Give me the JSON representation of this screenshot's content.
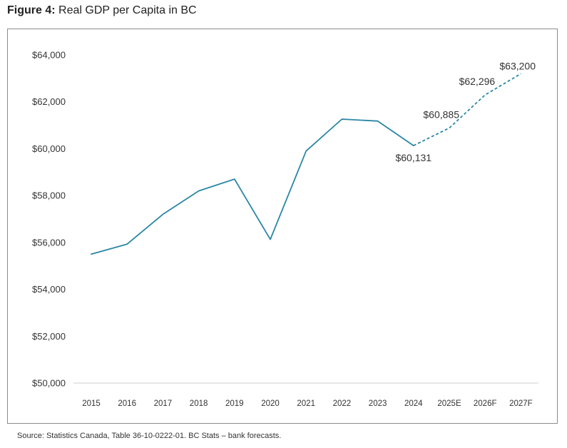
{
  "figure": {
    "label": "Figure 4:",
    "title": "Real GDP per Capita in BC"
  },
  "source": "Source: Statistics Canada, Table 36-10-0222-01. BC Stats – bank forecasts.",
  "colors": {
    "line": "#2a86a5",
    "baseline": "#cfcfcf",
    "frame": "#8c8c8c"
  },
  "chart_data": {
    "type": "line",
    "title": "Real GDP per Capita in BC",
    "xlabel": "",
    "ylabel": "",
    "ylim": [
      50000,
      64000
    ],
    "grid": false,
    "y_ticks": [
      50000,
      52000,
      54000,
      56000,
      58000,
      60000,
      62000,
      64000
    ],
    "y_tick_labels": [
      "$50,000",
      "$52,000",
      "$54,000",
      "$56,000",
      "$58,000",
      "$60,000",
      "$62,000",
      "$64,000"
    ],
    "categories": [
      "2015",
      "2016",
      "2017",
      "2018",
      "2019",
      "2020",
      "2021",
      "2022",
      "2023",
      "2024",
      "2025E",
      "2026F",
      "2027F"
    ],
    "series": [
      {
        "style": "solid",
        "values": [
          55500,
          55930,
          57200,
          58200,
          58700,
          56130,
          59900,
          61260,
          61180,
          60131,
          null,
          null,
          null
        ]
      },
      {
        "style": "dashed",
        "values": [
          null,
          null,
          null,
          null,
          null,
          null,
          null,
          null,
          null,
          60131,
          60885,
          62296,
          63200
        ]
      }
    ],
    "annotations": [
      {
        "category": "2024",
        "value": 60131,
        "text": "$60,131"
      },
      {
        "category": "2025E",
        "value": 60885,
        "text": "$60,885"
      },
      {
        "category": "2026F",
        "value": 62296,
        "text": "$62,296"
      },
      {
        "category": "2027F",
        "value": 63200,
        "text": "$63,200"
      }
    ]
  }
}
